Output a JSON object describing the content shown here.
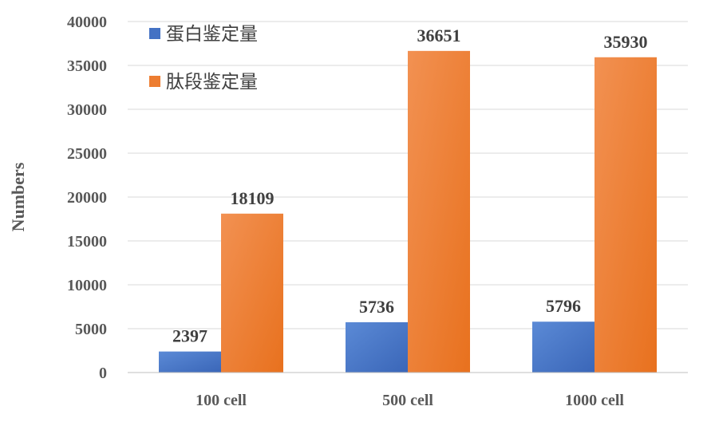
{
  "chart_data": {
    "type": "bar",
    "categories": [
      "100 cell",
      "500 cell",
      "1000 cell"
    ],
    "series": [
      {
        "name": "蛋白鉴定量",
        "values": [
          2397,
          5736,
          5796
        ],
        "color": "#4472C4"
      },
      {
        "name": "肽段鉴定量",
        "values": [
          18109,
          36651,
          35930
        ],
        "color": "#ED7D31"
      }
    ],
    "title": "",
    "xlabel": "",
    "ylabel": "Numbers",
    "ylim": [
      0,
      40000
    ],
    "yticks": [
      0,
      5000,
      10000,
      15000,
      20000,
      25000,
      30000,
      35000,
      40000
    ],
    "grid": true,
    "legend_position": "top-left",
    "data_labels": true
  }
}
